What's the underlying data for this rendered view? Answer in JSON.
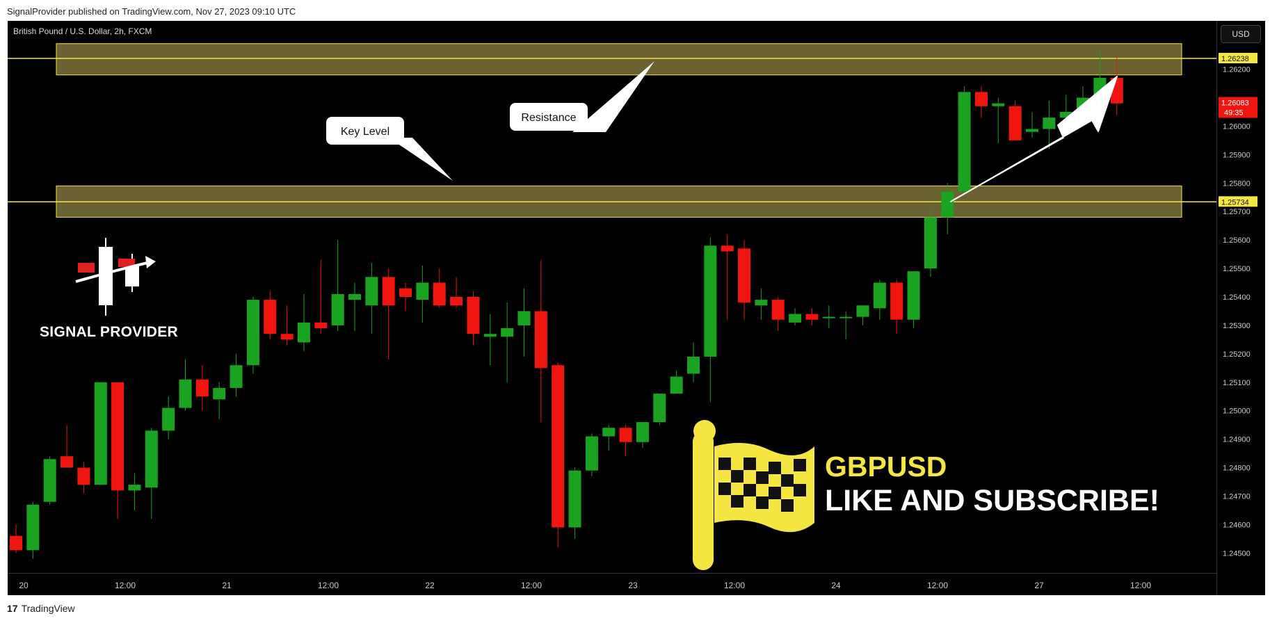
{
  "header": {
    "published_line": "SignalProvider published on TradingView.com, Nov 27, 2023 09:10 UTC"
  },
  "footer": {
    "brand": "TradingView",
    "brand_mark": "17"
  },
  "chart": {
    "symbol_title": "British Pound / U.S. Dollar, 2h, FXCM",
    "currency_button": "USD",
    "resistance_label": "1.26238",
    "keylevel_label": "1.25734",
    "current_price_label": "1.26083",
    "countdown_label": "49:35",
    "annotation_resistance": "Resistance",
    "annotation_keylevel": "Key Level",
    "brand_overlay": "SIGNAL PROVIDER",
    "ticker_overlay": "GBPUSD",
    "cta_overlay": "LIKE AND SUBSCRIBE!"
  },
  "colors": {
    "up": "#1aa321",
    "down": "#f0150f",
    "zone_fill": "#6b6233",
    "zone_border": "#f5e642",
    "level_line": "#f5e642",
    "label_bg": "#f5e642",
    "price_label_bg": "#f0150f"
  },
  "chart_data": {
    "type": "candlestick",
    "title": "British Pound / U.S. Dollar, 2h, FXCM",
    "price_ticks": [
      "1.26200",
      "1.26000",
      "1.25900",
      "1.25800",
      "1.25700",
      "1.25600",
      "1.25500",
      "1.25400",
      "1.25300",
      "1.25200",
      "1.25100",
      "1.25000",
      "1.24900",
      "1.24800",
      "1.24700",
      "1.24600",
      "1.24500"
    ],
    "time_ticks": [
      "20",
      "12:00",
      "21",
      "12:00",
      "22",
      "12:00",
      "23",
      "12:00",
      "24",
      "12:00",
      "27",
      "12:00"
    ],
    "ylim": [
      1.2443,
      1.2637
    ],
    "horizontal_lines": [
      1.26238,
      1.25734
    ],
    "zones": [
      {
        "name": "Resistance",
        "low": 1.2618,
        "high": 1.2629
      },
      {
        "name": "Key Level",
        "low": 1.2568,
        "high": 1.2579
      }
    ],
    "candles": [
      {
        "o": 1.2456,
        "h": 1.246,
        "l": 1.245,
        "c": 1.2451
      },
      {
        "o": 1.2451,
        "h": 1.2468,
        "l": 1.2448,
        "c": 1.2467
      },
      {
        "o": 1.2468,
        "h": 1.2484,
        "l": 1.2467,
        "c": 1.2483
      },
      {
        "o": 1.2484,
        "h": 1.2495,
        "l": 1.248,
        "c": 1.248
      },
      {
        "o": 1.248,
        "h": 1.2482,
        "l": 1.2471,
        "c": 1.2474
      },
      {
        "o": 1.2474,
        "h": 1.251,
        "l": 1.2474,
        "c": 1.251
      },
      {
        "o": 1.251,
        "h": 1.251,
        "l": 1.2462,
        "c": 1.2472
      },
      {
        "o": 1.2472,
        "h": 1.2478,
        "l": 1.2465,
        "c": 1.2474
      },
      {
        "o": 1.2473,
        "h": 1.2494,
        "l": 1.2462,
        "c": 1.2493
      },
      {
        "o": 1.2493,
        "h": 1.2505,
        "l": 1.249,
        "c": 1.2501
      },
      {
        "o": 1.2501,
        "h": 1.2518,
        "l": 1.25,
        "c": 1.2511
      },
      {
        "o": 1.2511,
        "h": 1.2516,
        "l": 1.25,
        "c": 1.2505
      },
      {
        "o": 1.2504,
        "h": 1.251,
        "l": 1.2497,
        "c": 1.2508
      },
      {
        "o": 1.2508,
        "h": 1.252,
        "l": 1.2505,
        "c": 1.2516
      },
      {
        "o": 1.2516,
        "h": 1.254,
        "l": 1.2513,
        "c": 1.2539
      },
      {
        "o": 1.2539,
        "h": 1.2542,
        "l": 1.2525,
        "c": 1.2527
      },
      {
        "o": 1.2527,
        "h": 1.2537,
        "l": 1.2523,
        "c": 1.2525
      },
      {
        "o": 1.2524,
        "h": 1.2541,
        "l": 1.2521,
        "c": 1.2531
      },
      {
        "o": 1.2531,
        "h": 1.2553,
        "l": 1.2527,
        "c": 1.2529
      },
      {
        "o": 1.253,
        "h": 1.256,
        "l": 1.2528,
        "c": 1.2541
      },
      {
        "o": 1.2539,
        "h": 1.2545,
        "l": 1.2528,
        "c": 1.2541
      },
      {
        "o": 1.2537,
        "h": 1.2552,
        "l": 1.2527,
        "c": 1.2547
      },
      {
        "o": 1.2547,
        "h": 1.255,
        "l": 1.2518,
        "c": 1.2537
      },
      {
        "o": 1.2543,
        "h": 1.2545,
        "l": 1.2535,
        "c": 1.254
      },
      {
        "o": 1.2539,
        "h": 1.2551,
        "l": 1.2531,
        "c": 1.2545
      },
      {
        "o": 1.2545,
        "h": 1.255,
        "l": 1.2536,
        "c": 1.2537
      },
      {
        "o": 1.254,
        "h": 1.2547,
        "l": 1.2536,
        "c": 1.2537
      },
      {
        "o": 1.254,
        "h": 1.2542,
        "l": 1.2523,
        "c": 1.2527
      },
      {
        "o": 1.2526,
        "h": 1.2534,
        "l": 1.2516,
        "c": 1.2527
      },
      {
        "o": 1.2526,
        "h": 1.2538,
        "l": 1.251,
        "c": 1.2529
      },
      {
        "o": 1.253,
        "h": 1.2543,
        "l": 1.2519,
        "c": 1.2535
      },
      {
        "o": 1.2535,
        "h": 1.2553,
        "l": 1.2496,
        "c": 1.2515
      },
      {
        "o": 1.2516,
        "h": 1.2517,
        "l": 1.2452,
        "c": 1.2459
      },
      {
        "o": 1.2459,
        "h": 1.248,
        "l": 1.2455,
        "c": 1.2479
      },
      {
        "o": 1.2479,
        "h": 1.2492,
        "l": 1.2477,
        "c": 1.2491
      },
      {
        "o": 1.2491,
        "h": 1.2495,
        "l": 1.2486,
        "c": 1.2494
      },
      {
        "o": 1.2494,
        "h": 1.2495,
        "l": 1.2484,
        "c": 1.2489
      },
      {
        "o": 1.2489,
        "h": 1.2496,
        "l": 1.2487,
        "c": 1.2496
      },
      {
        "o": 1.2496,
        "h": 1.2506,
        "l": 1.2495,
        "c": 1.2506
      },
      {
        "o": 1.2506,
        "h": 1.2514,
        "l": 1.2506,
        "c": 1.2512
      },
      {
        "o": 1.2513,
        "h": 1.2524,
        "l": 1.251,
        "c": 1.2519
      },
      {
        "o": 1.2519,
        "h": 1.2561,
        "l": 1.2503,
        "c": 1.2558
      },
      {
        "o": 1.2558,
        "h": 1.2562,
        "l": 1.2532,
        "c": 1.2556
      },
      {
        "o": 1.2557,
        "h": 1.256,
        "l": 1.2532,
        "c": 1.2538
      },
      {
        "o": 1.2537,
        "h": 1.2543,
        "l": 1.2532,
        "c": 1.2539
      },
      {
        "o": 1.2539,
        "h": 1.254,
        "l": 1.2528,
        "c": 1.2532
      },
      {
        "o": 1.2531,
        "h": 1.2536,
        "l": 1.253,
        "c": 1.2534
      },
      {
        "o": 1.2534,
        "h": 1.2536,
        "l": 1.253,
        "c": 1.2532
      },
      {
        "o": 1.2533,
        "h": 1.2537,
        "l": 1.2529,
        "c": 1.2533
      },
      {
        "o": 1.2533,
        "h": 1.2535,
        "l": 1.2525,
        "c": 1.2533
      },
      {
        "o": 1.2533,
        "h": 1.2537,
        "l": 1.253,
        "c": 1.2537
      },
      {
        "o": 1.2536,
        "h": 1.2546,
        "l": 1.2532,
        "c": 1.2545
      },
      {
        "o": 1.2545,
        "h": 1.2546,
        "l": 1.2527,
        "c": 1.2532
      },
      {
        "o": 1.2532,
        "h": 1.2549,
        "l": 1.2529,
        "c": 1.2549
      },
      {
        "o": 1.255,
        "h": 1.2571,
        "l": 1.2547,
        "c": 1.2568
      },
      {
        "o": 1.2568,
        "h": 1.258,
        "l": 1.2562,
        "c": 1.2577
      },
      {
        "o": 1.2577,
        "h": 1.2614,
        "l": 1.2576,
        "c": 1.2612
      },
      {
        "o": 1.2612,
        "h": 1.2614,
        "l": 1.2603,
        "c": 1.2607
      },
      {
        "o": 1.2607,
        "h": 1.261,
        "l": 1.2594,
        "c": 1.2608
      },
      {
        "o": 1.2607,
        "h": 1.2609,
        "l": 1.2595,
        "c": 1.2595
      },
      {
        "o": 1.2598,
        "h": 1.2605,
        "l": 1.2596,
        "c": 1.2599
      },
      {
        "o": 1.2599,
        "h": 1.2609,
        "l": 1.2592,
        "c": 1.2603
      },
      {
        "o": 1.2603,
        "h": 1.2611,
        "l": 1.2597,
        "c": 1.2605
      },
      {
        "o": 1.2605,
        "h": 1.2614,
        "l": 1.2602,
        "c": 1.261
      },
      {
        "o": 1.261,
        "h": 1.2626,
        "l": 1.2608,
        "c": 1.2617
      },
      {
        "o": 1.2617,
        "h": 1.2624,
        "l": 1.2604,
        "c": 1.2608
      }
    ]
  }
}
